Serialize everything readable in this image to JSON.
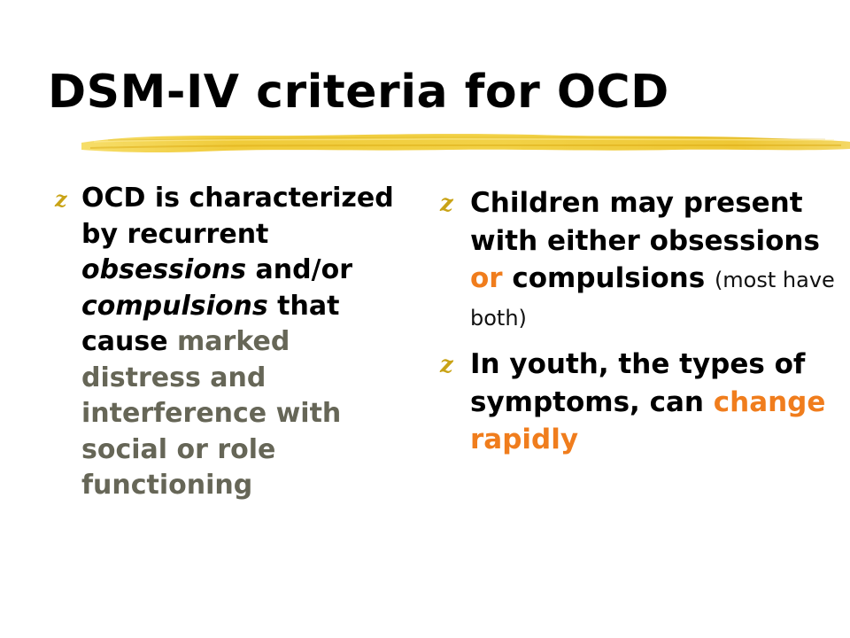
{
  "slide": {
    "title": "DSM-IV criteria for OCD"
  },
  "left_column": {
    "bullet_symbol": "z",
    "text_parts": {
      "part_1": "OCD is characterized by recurrent ",
      "part_2": "obsessions",
      "part_3": " and/or ",
      "part_4": "compulsions",
      "part_5": " that cause ",
      "part_6": "marked distress and interference with social or role functioning"
    }
  },
  "right_column": {
    "bullet_1": {
      "symbol": "z",
      "part_1": "Children may present with either obsessions ",
      "part_2": "or",
      "part_3": " compulsions ",
      "part_4": "(most have both)"
    },
    "bullet_2": {
      "symbol": "z",
      "part_1": "In youth, the types of symptoms, can ",
      "part_2": "change rapidly"
    }
  },
  "colors": {
    "background": "#ffffff",
    "text": "#000000",
    "muted_text": "#666657",
    "highlight_orange": "#f07d1d",
    "bullet_gold": "#c9a316",
    "stroke_gold": "#f2cf36"
  },
  "decorations": {
    "accent_stroke": "highlighter-stroke",
    "bullet_icon": "z-bullet-icon"
  }
}
